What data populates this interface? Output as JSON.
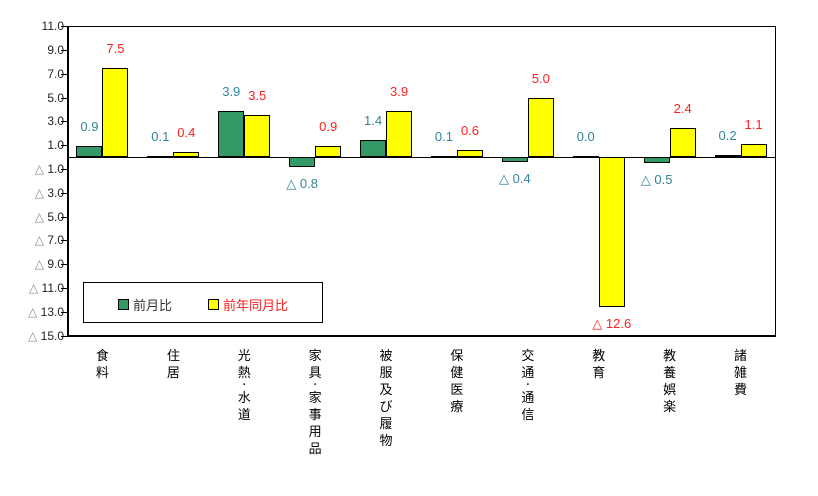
{
  "chart_data": {
    "type": "bar",
    "title": "",
    "xlabel": "",
    "ylabel": "",
    "ylim": [
      -15,
      11
    ],
    "yticks": [
      11,
      9,
      7,
      5,
      3,
      1,
      -1,
      -3,
      -5,
      -7,
      -9,
      -11,
      -13,
      -15
    ],
    "ytick_labels": [
      "11.0",
      "9.0",
      "7.0",
      "5.0",
      "3.0",
      "1.0",
      "△ 1.0",
      "△ 3.0",
      "△ 5.0",
      "△ 7.0",
      "△ 9.0",
      "△ 11.0",
      "△ 13.0",
      "△ 15.0"
    ],
    "categories": [
      "食料",
      "住居",
      "光熱・水道",
      "家具・家事用品",
      "被服及び履物",
      "保健医療",
      "交通・通信",
      "教育",
      "教養娯楽",
      "諸雑費"
    ],
    "series": [
      {
        "name": "前月比",
        "color": "#339966",
        "label_color": "#31859c",
        "values": [
          0.9,
          0.1,
          3.9,
          -0.8,
          1.4,
          0.1,
          -0.4,
          0.0,
          -0.5,
          0.2
        ],
        "labels": [
          "0.9",
          "0.1",
          "3.9",
          "△ 0.8",
          "1.4",
          "0.1",
          "△ 0.4",
          "0.0",
          "△ 0.5",
          "0.2"
        ]
      },
      {
        "name": "前年同月比",
        "color": "#ffff00",
        "label_color": "#ff2020",
        "values": [
          7.5,
          0.4,
          3.5,
          0.9,
          3.9,
          0.6,
          5.0,
          -12.6,
          2.4,
          1.1
        ],
        "labels": [
          "7.5",
          "0.4",
          "3.5",
          "0.9",
          "3.9",
          "0.6",
          "5.0",
          "△ 12.6",
          "2.4",
          "1.1"
        ]
      }
    ],
    "legend_position": "inside-bottom-left",
    "grid": false
  },
  "legend": {
    "series1": "前月比",
    "series2": "前年同月比"
  }
}
